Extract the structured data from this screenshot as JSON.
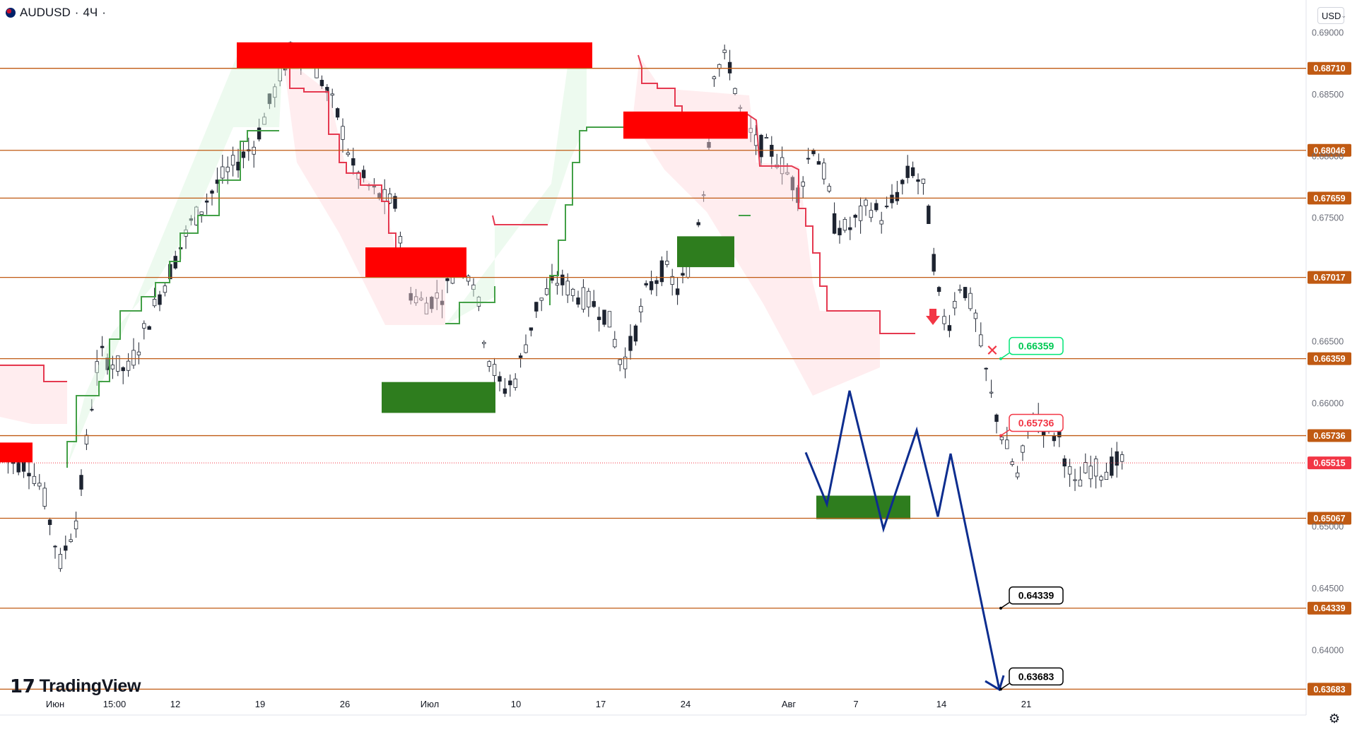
{
  "header": {
    "symbol": "AUDUSD",
    "interval": "4Ч",
    "currency": "USD"
  },
  "branding": {
    "logo_text": "TradingView"
  },
  "chart_data": {
    "type": "candlestick",
    "title": "AUDUSD · 4Ч",
    "ylim": [
      0.6355,
      0.6905
    ],
    "y_ticks": [
      "0.69000",
      "0.68500",
      "0.68000",
      "0.67500",
      "0.66500",
      "0.66000",
      "0.65000",
      "0.64500",
      "0.64000"
    ],
    "x_ticks": [
      "Июн",
      "15:00",
      "12",
      "19",
      "26",
      "Июл",
      "10",
      "17",
      "24",
      "Авг",
      "7",
      "14",
      "21"
    ],
    "horizontal_levels": [
      0.6871,
      0.68046,
      0.67659,
      0.67017,
      0.66359,
      0.65736,
      0.65067,
      0.64339,
      0.63683
    ],
    "level_labels": [
      "0.68710",
      "0.68046",
      "0.67659",
      "0.67017",
      "0.66359",
      "0.65736",
      "0.65067",
      "0.64339",
      "0.63683"
    ],
    "current_price": 0.65515,
    "current_price_label": "0.65515",
    "callouts": [
      {
        "label": "0.66359",
        "color": "#00e676",
        "marker": "cross"
      },
      {
        "label": "0.65736",
        "color": "#f23645",
        "marker": "down-arrow"
      },
      {
        "label": "0.64339",
        "color": "#000000"
      },
      {
        "label": "0.63683",
        "color": "#000000"
      }
    ],
    "resistance_zones": [
      {
        "y": [
          0.6871,
          0.6892
        ]
      },
      {
        "y": [
          0.6702,
          0.6726
        ]
      },
      {
        "y": [
          0.6814,
          0.6836
        ]
      },
      {
        "y": [
          0.6552,
          0.6568
        ]
      }
    ],
    "support_zones": [
      {
        "y": [
          0.6592,
          0.6617
        ]
      },
      {
        "y": [
          0.671,
          0.6735
        ]
      },
      {
        "y": [
          0.6506,
          0.6525
        ]
      }
    ],
    "projection_path_prices": [
      0.6518,
      0.661,
      0.6498,
      0.6578,
      0.6508,
      0.6559,
      0.6368
    ],
    "colors": {
      "level_line": "#c05a13",
      "up_candle": "#089981",
      "down_candle": "#f23645",
      "candle_body": "#26a69a",
      "resistance": "#ff0000",
      "support": "#2e7d1e",
      "bull_line": "#43a047",
      "bear_line": "#e53950",
      "projection": "#0d2d8f"
    }
  }
}
